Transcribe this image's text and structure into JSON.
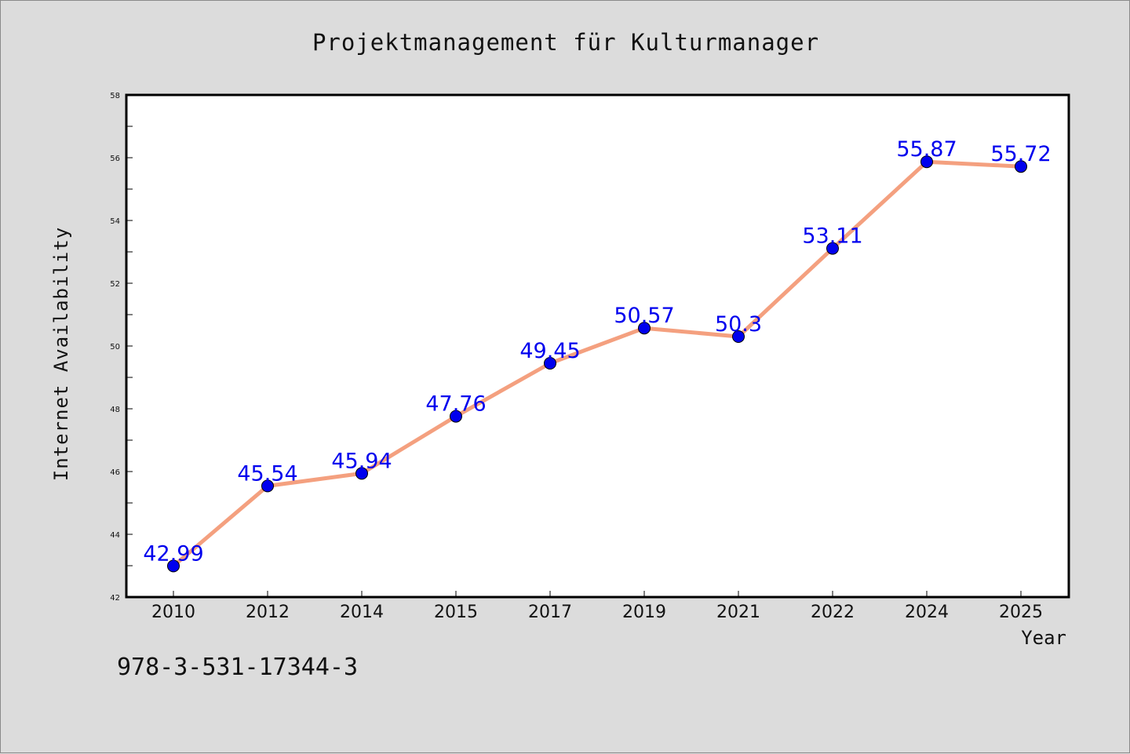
{
  "chart_data": {
    "type": "line",
    "title": "Projektmanagement für Kulturmanager",
    "xlabel": "Year",
    "ylabel": "Internet Availability",
    "categories": [
      "2010",
      "2012",
      "2014",
      "2015",
      "2017",
      "2019",
      "2021",
      "2022",
      "2024",
      "2025"
    ],
    "series": [
      {
        "values": [
          42.99,
          45.54,
          45.94,
          47.76,
          49.45,
          50.57,
          50.3,
          53.11,
          55.87,
          55.72
        ],
        "labels": [
          "42.99",
          "45.54",
          "45.94",
          "47.76",
          "49.45",
          "50.57",
          "50.3",
          "53.11",
          "55.87",
          "55.72"
        ],
        "line_color": "#f4a07f",
        "marker_color": "#0000ee"
      }
    ],
    "ylim": [
      42,
      58
    ],
    "yticks": [
      "42",
      "44",
      "46",
      "48",
      "50",
      "52",
      "54",
      "56",
      "58"
    ],
    "grid": false,
    "label_color": "#0000ee"
  },
  "footer": {
    "isbn": "978-3-531-17344-3"
  }
}
